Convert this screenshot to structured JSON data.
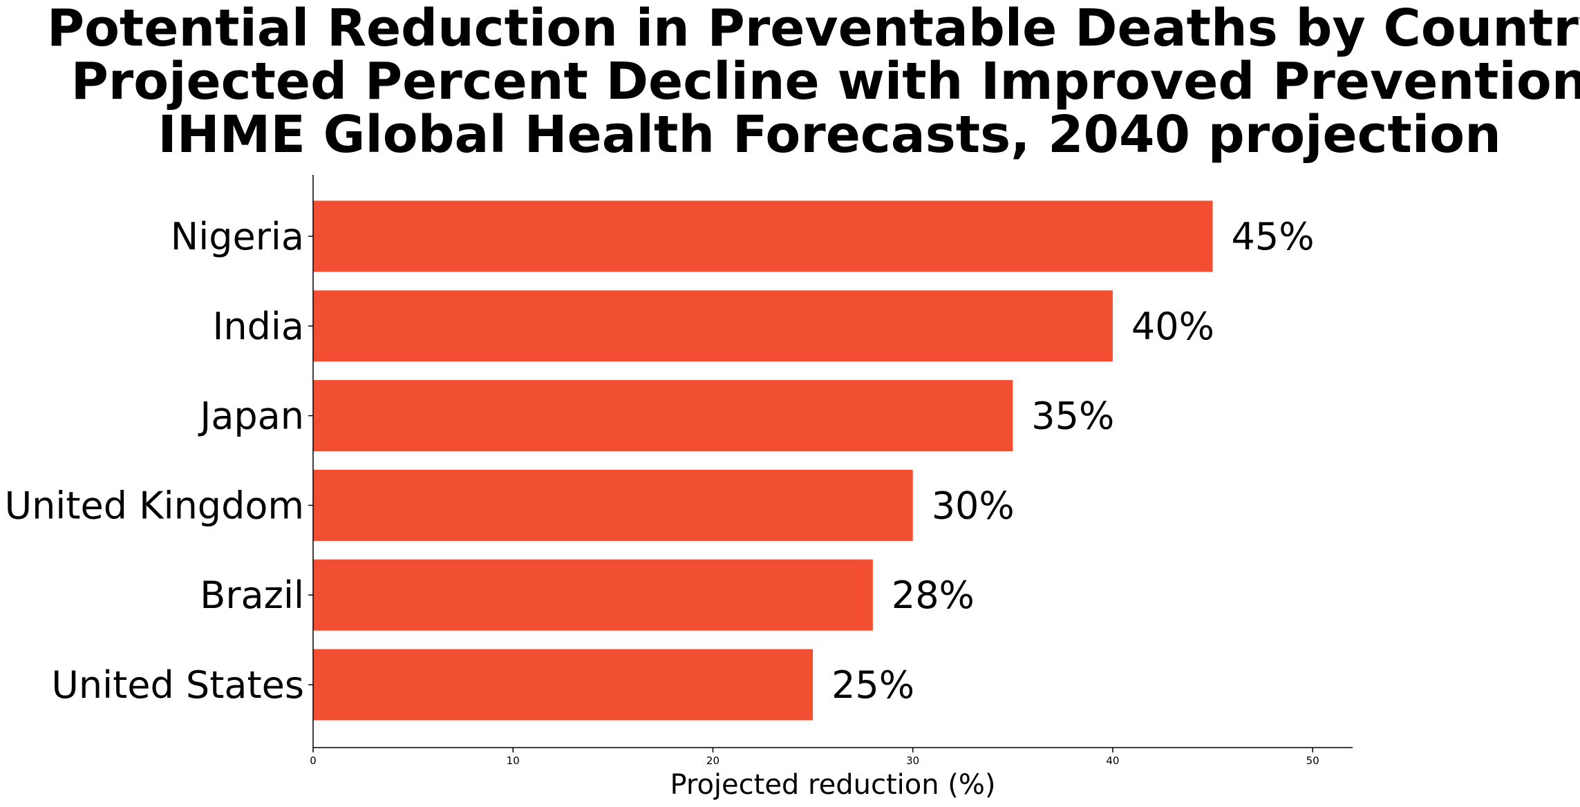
{
  "chart_data": {
    "type": "bar",
    "orientation": "horizontal",
    "title_lines": [
      "Potential Reduction in Preventable Deaths by Country",
      "Projected Percent Decline with Improved Prevention",
      "IHME Global Health Forecasts, 2040 projection"
    ],
    "categories": [
      "Nigeria",
      "India",
      "Japan",
      "United Kingdom",
      "Brazil",
      "United States"
    ],
    "values": [
      45,
      40,
      35,
      30,
      28,
      25
    ],
    "value_labels": [
      "45%",
      "40%",
      "35%",
      "30%",
      "28%",
      "25%"
    ],
    "xlabel": "Projected reduction (%)",
    "ylabel": "",
    "xlim": [
      0,
      52
    ],
    "xticks": [
      0,
      10,
      20,
      30,
      40,
      50
    ],
    "xtick_labels": [
      "0",
      "10",
      "20",
      "30",
      "40",
      "50"
    ],
    "bar_color": "#f24e32",
    "grid": false
  }
}
